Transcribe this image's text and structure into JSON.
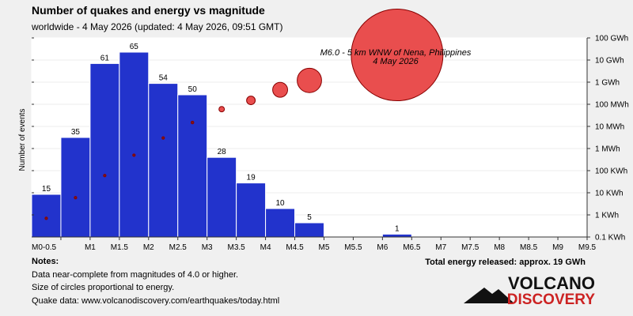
{
  "header": {
    "title": "Number of quakes and energy vs magnitude",
    "subtitle": "worldwide -  4 May 2026 (updated: 4 May 2026, 09:51 GMT)"
  },
  "annotation": {
    "line1": "M6.0 - 5 km WNW of Nena, Philippines",
    "line2": "4 May 2026"
  },
  "notes": {
    "heading": "Notes:",
    "line1": "Data near-complete from magnitudes of 4.0 or higher.",
    "line2": "Size of circles proportional to energy.",
    "line3": "Quake data: www.volcanodiscovery.com/earthquakes/today.html"
  },
  "total_energy": "Total energy released: approx. 19 GWh",
  "logo": {
    "word1": "VOLCANO",
    "word2": "DISCOVERY"
  },
  "colors": {
    "bar_fill": "#2233cc",
    "bar_stroke": "#ffffff",
    "circle_fill": "#e84545",
    "circle_stroke": "#880000",
    "logo_red": "#cc2222"
  },
  "chart_data": {
    "type": "bar",
    "xlabel": "",
    "ylabel": "Number of events",
    "x_ticks": [
      "M0-0.5",
      "M1",
      "M1.5",
      "M2",
      "M2.5",
      "M3",
      "M3.5",
      "M4",
      "M4.5",
      "M5",
      "M5.5",
      "M6",
      "M6.5",
      "M7",
      "M7.5",
      "M8",
      "M8.5",
      "M9",
      "M9.5"
    ],
    "bins": [
      {
        "from": 0.0,
        "to": 0.5,
        "count": 15
      },
      {
        "from": 0.5,
        "to": 1.0,
        "count": 35
      },
      {
        "from": 1.0,
        "to": 1.5,
        "count": 61
      },
      {
        "from": 1.5,
        "to": 2.0,
        "count": 65
      },
      {
        "from": 2.0,
        "to": 2.5,
        "count": 54
      },
      {
        "from": 2.5,
        "to": 3.0,
        "count": 50
      },
      {
        "from": 3.0,
        "to": 3.5,
        "count": 28
      },
      {
        "from": 3.5,
        "to": 4.0,
        "count": 19
      },
      {
        "from": 4.0,
        "to": 4.5,
        "count": 10
      },
      {
        "from": 4.5,
        "to": 5.0,
        "count": 5
      },
      {
        "from": 6.0,
        "to": 6.5,
        "count": 1
      }
    ],
    "count_ylim": [
      0,
      70
    ],
    "energy_axis": {
      "scale": "log",
      "labels": [
        "100 GWh",
        "10 GWh",
        "1 GWh",
        "100 MWh",
        "10 MWh",
        "1 MWh",
        "100 KWh",
        "10 KWh",
        "1 KWh",
        "0.1 KWh"
      ]
    },
    "energy_series": [
      {
        "mag": 0.25,
        "energy_kwh": 0.7
      },
      {
        "mag": 0.75,
        "energy_kwh": 6
      },
      {
        "mag": 1.25,
        "energy_kwh": 60
      },
      {
        "mag": 1.75,
        "energy_kwh": 500
      },
      {
        "mag": 2.25,
        "energy_kwh": 3000
      },
      {
        "mag": 2.75,
        "energy_kwh": 15000
      },
      {
        "mag": 3.25,
        "energy_kwh": 60000
      },
      {
        "mag": 3.75,
        "energy_kwh": 150000
      },
      {
        "mag": 4.25,
        "energy_kwh": 450000
      },
      {
        "mag": 4.75,
        "energy_kwh": 1200000
      },
      {
        "mag": 6.25,
        "energy_kwh": 17000000
      }
    ]
  }
}
